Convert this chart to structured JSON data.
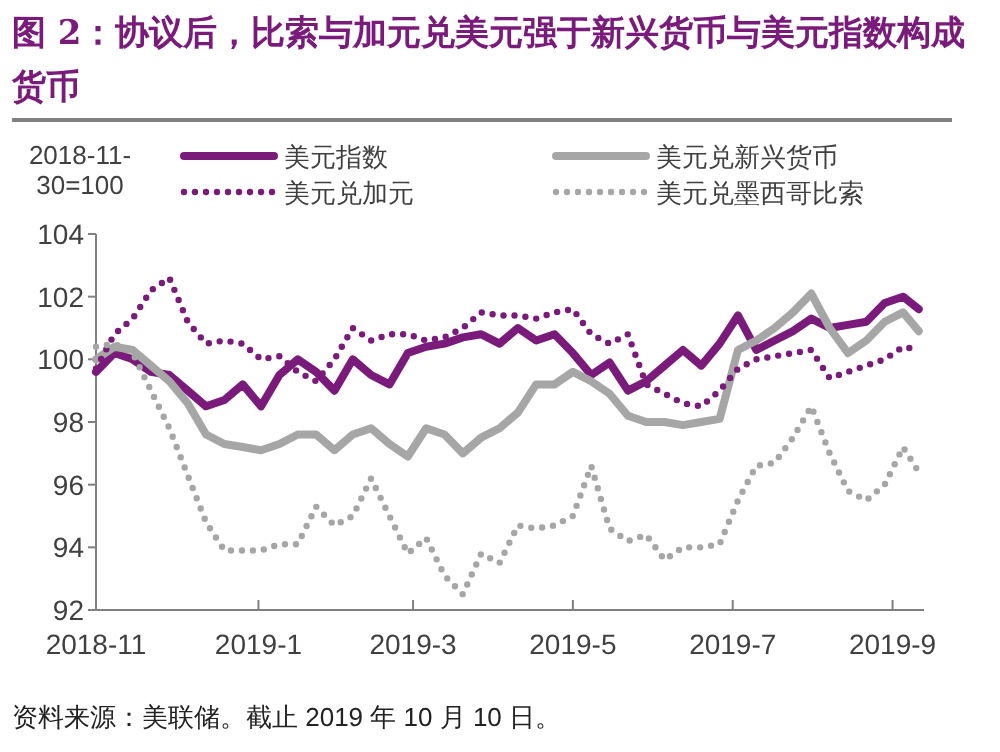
{
  "chart_data": {
    "type": "line",
    "title": "图 2：协议后，比索与加元兑美元强于新兴货币与美元指数构成货币",
    "ylabel": "2018-11-30=100",
    "x": [
      "2018-11-30",
      "2018-12-07",
      "2018-12-14",
      "2018-12-21",
      "2018-12-28",
      "2019-01-04",
      "2019-01-11",
      "2019-01-18",
      "2019-01-25",
      "2019-02-01",
      "2019-02-08",
      "2019-02-15",
      "2019-02-22",
      "2019-03-01",
      "2019-03-08",
      "2019-03-15",
      "2019-03-22",
      "2019-03-29",
      "2019-04-05",
      "2019-04-12",
      "2019-04-19",
      "2019-04-26",
      "2019-05-03",
      "2019-05-10",
      "2019-05-17",
      "2019-05-24",
      "2019-05-31",
      "2019-06-07",
      "2019-06-14",
      "2019-06-21",
      "2019-06-28",
      "2019-07-05",
      "2019-07-12",
      "2019-07-19",
      "2019-07-26",
      "2019-08-02",
      "2019-08-09",
      "2019-08-16",
      "2019-08-23",
      "2019-08-30",
      "2019-09-06",
      "2019-09-13",
      "2019-09-20",
      "2019-09-27",
      "2019-10-04",
      "2019-10-10"
    ],
    "series": [
      {
        "name": "美元指数",
        "color": "#7a1a7a",
        "line_style": "solid",
        "values": [
          99.6,
          100.2,
          100.0,
          99.6,
          99.5,
          99.0,
          98.5,
          98.7,
          99.2,
          98.5,
          99.5,
          100.0,
          99.6,
          99.0,
          100.0,
          99.5,
          99.2,
          100.2,
          100.4,
          100.5,
          100.7,
          100.8,
          100.5,
          101.0,
          100.6,
          100.8,
          100.2,
          99.5,
          99.9,
          99.0,
          99.3,
          99.8,
          100.3,
          99.8,
          100.5,
          101.4,
          100.3,
          100.6,
          100.9,
          101.3,
          101.0,
          101.1,
          101.2,
          101.8,
          102.0,
          101.6
        ]
      },
      {
        "name": "美元兑新兴货币",
        "color": "#a6a6a6",
        "line_style": "solid",
        "values": [
          100.0,
          100.4,
          100.3,
          99.8,
          99.3,
          98.6,
          97.6,
          97.3,
          97.2,
          97.1,
          97.3,
          97.6,
          97.6,
          97.1,
          97.6,
          97.8,
          97.3,
          96.9,
          97.8,
          97.6,
          97.0,
          97.5,
          97.8,
          98.3,
          99.2,
          99.2,
          99.6,
          99.3,
          98.9,
          98.2,
          98.0,
          98.0,
          97.9,
          98.0,
          98.1,
          100.3,
          100.6,
          101.0,
          101.5,
          102.1,
          101.0,
          100.2,
          100.6,
          101.2,
          101.5,
          100.9
        ]
      },
      {
        "name": "美元兑加元",
        "color": "#7a1a7a",
        "line_style": "dotted",
        "values": [
          99.7,
          100.8,
          101.3,
          102.2,
          102.6,
          101.2,
          100.5,
          100.6,
          100.5,
          100.0,
          100.1,
          99.6,
          99.3,
          100.0,
          101.0,
          100.6,
          100.8,
          100.8,
          100.6,
          100.7,
          101.0,
          101.5,
          101.4,
          101.4,
          101.3,
          101.5,
          101.6,
          100.8,
          100.5,
          100.8,
          99.2,
          98.9,
          98.6,
          98.5,
          99.0,
          99.7,
          100.0,
          100.1,
          100.2,
          100.3,
          99.4,
          99.6,
          99.8,
          100.0,
          100.4,
          100.3
        ]
      },
      {
        "name": "美元兑墨西哥比索",
        "color": "#a6a6a6",
        "line_style": "dotted",
        "values": [
          100.4,
          100.5,
          100.2,
          99.0,
          97.8,
          96.3,
          94.8,
          93.9,
          93.9,
          93.9,
          94.1,
          94.1,
          95.3,
          94.7,
          95.0,
          96.2,
          95.0,
          93.8,
          94.3,
          93.1,
          92.5,
          93.8,
          93.5,
          94.7,
          94.6,
          94.7,
          95.0,
          96.6,
          94.6,
          94.2,
          94.4,
          93.6,
          94.0,
          94.0,
          94.1,
          95.5,
          96.6,
          96.7,
          97.5,
          98.5,
          97.0,
          95.8,
          95.5,
          96.0,
          97.2,
          96.4
        ]
      }
    ],
    "xlim": [
      "2018-11-30",
      "2019-10-12"
    ],
    "xticks": [
      {
        "value": "2018-11-30",
        "label": "2018-11"
      },
      {
        "value": "2019-01-31",
        "label": "2019-1"
      },
      {
        "value": "2019-03-31",
        "label": "2019-3"
      },
      {
        "value": "2019-05-31",
        "label": "2019-5"
      },
      {
        "value": "2019-07-31",
        "label": "2019-7"
      },
      {
        "value": "2019-09-30",
        "label": "2019-9"
      }
    ],
    "ylim": [
      92,
      104
    ],
    "yticks": [
      92,
      94,
      96,
      98,
      100,
      102,
      104
    ],
    "grid": false,
    "legend": "top",
    "marker": "none",
    "annotations": [
      "资料来源：美联储。截止 2019 年 10 月 10 日。"
    ]
  }
}
